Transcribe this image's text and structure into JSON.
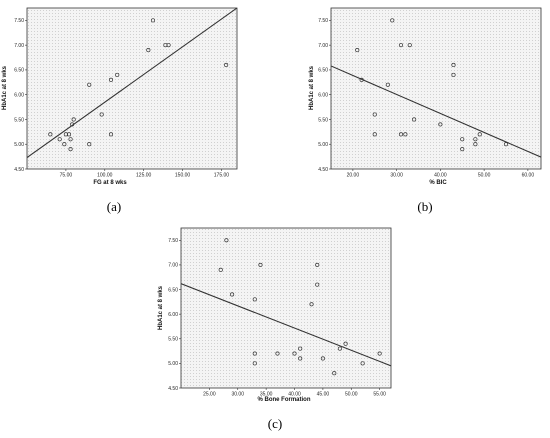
{
  "chart_data": [
    {
      "type": "scatter",
      "panel_label": "(a)",
      "xlabel": "FG at 8 wks",
      "ylabel": "HbA1c at 8 wks",
      "xlim": [
        50,
        185
      ],
      "ylim": [
        4.5,
        7.75
      ],
      "x_ticks": [
        "75.00",
        "100.00",
        "125.00",
        "150.00",
        "175.00"
      ],
      "y_ticks": [
        "4.50",
        "5.00",
        "5.50",
        "6.00",
        "6.50",
        "7.00",
        "7.50"
      ],
      "fit_line": [
        [
          50,
          4.73
        ],
        [
          185,
          7.75
        ]
      ],
      "points": [
        {
          "x": 65,
          "y": 5.2
        },
        {
          "x": 71,
          "y": 5.1
        },
        {
          "x": 74,
          "y": 5.0
        },
        {
          "x": 75,
          "y": 5.2
        },
        {
          "x": 77,
          "y": 5.2
        },
        {
          "x": 78,
          "y": 4.9
        },
        {
          "x": 78,
          "y": 5.1
        },
        {
          "x": 79,
          "y": 5.4
        },
        {
          "x": 80,
          "y": 5.5
        },
        {
          "x": 90,
          "y": 6.2
        },
        {
          "x": 90,
          "y": 5.0
        },
        {
          "x": 98,
          "y": 5.6
        },
        {
          "x": 104,
          "y": 5.2
        },
        {
          "x": 104,
          "y": 6.3
        },
        {
          "x": 108,
          "y": 6.4
        },
        {
          "x": 128,
          "y": 6.9
        },
        {
          "x": 131,
          "y": 7.5
        },
        {
          "x": 139,
          "y": 7.0
        },
        {
          "x": 141,
          "y": 7.0
        },
        {
          "x": 178,
          "y": 6.6
        }
      ]
    },
    {
      "type": "scatter",
      "panel_label": "(b)",
      "xlabel": "% BIC",
      "ylabel": "HbA1c at 8 wks",
      "xlim": [
        15,
        63
      ],
      "ylim": [
        4.5,
        7.75
      ],
      "x_ticks": [
        "20.00",
        "30.00",
        "40.00",
        "50.00",
        "60.00"
      ],
      "y_ticks": [
        "4.50",
        "5.00",
        "5.50",
        "6.00",
        "6.50",
        "7.00",
        "7.50"
      ],
      "fit_line": [
        [
          15,
          6.58
        ],
        [
          63,
          4.74
        ]
      ],
      "points": [
        {
          "x": 21,
          "y": 6.9
        },
        {
          "x": 22,
          "y": 6.3
        },
        {
          "x": 25,
          "y": 5.6
        },
        {
          "x": 25,
          "y": 5.2
        },
        {
          "x": 28,
          "y": 6.2
        },
        {
          "x": 29,
          "y": 7.5
        },
        {
          "x": 31,
          "y": 7.0
        },
        {
          "x": 31,
          "y": 5.2
        },
        {
          "x": 32,
          "y": 5.2
        },
        {
          "x": 33,
          "y": 7.0
        },
        {
          "x": 34,
          "y": 5.5
        },
        {
          "x": 40,
          "y": 5.4
        },
        {
          "x": 43,
          "y": 6.6
        },
        {
          "x": 43,
          "y": 6.4
        },
        {
          "x": 45,
          "y": 5.1
        },
        {
          "x": 45,
          "y": 4.9
        },
        {
          "x": 48,
          "y": 5.0
        },
        {
          "x": 48,
          "y": 5.1
        },
        {
          "x": 49,
          "y": 5.2
        },
        {
          "x": 55,
          "y": 5.0
        }
      ]
    },
    {
      "type": "scatter",
      "panel_label": "(c)",
      "xlabel": "% Bone Formation",
      "ylabel": "HbA1c at 8 wks",
      "xlim": [
        20,
        57
      ],
      "ylim": [
        4.5,
        7.75
      ],
      "x_ticks": [
        "25.00",
        "30.00",
        "35.00",
        "40.00",
        "45.00",
        "50.00",
        "55.00"
      ],
      "y_ticks": [
        "4.50",
        "5.00",
        "5.50",
        "6.00",
        "6.50",
        "7.00",
        "7.50"
      ],
      "fit_line": [
        [
          20,
          6.62
        ],
        [
          57,
          4.95
        ]
      ],
      "points": [
        {
          "x": 27,
          "y": 6.9
        },
        {
          "x": 28,
          "y": 7.5
        },
        {
          "x": 29,
          "y": 6.4
        },
        {
          "x": 33,
          "y": 6.3
        },
        {
          "x": 33,
          "y": 5.2
        },
        {
          "x": 33,
          "y": 5.0
        },
        {
          "x": 34,
          "y": 7.0
        },
        {
          "x": 37,
          "y": 5.2
        },
        {
          "x": 40,
          "y": 5.2
        },
        {
          "x": 41,
          "y": 5.1
        },
        {
          "x": 41,
          "y": 5.3
        },
        {
          "x": 43,
          "y": 6.2
        },
        {
          "x": 44,
          "y": 7.0
        },
        {
          "x": 44,
          "y": 6.6
        },
        {
          "x": 45,
          "y": 5.1
        },
        {
          "x": 47,
          "y": 4.8
        },
        {
          "x": 48,
          "y": 5.3
        },
        {
          "x": 49,
          "y": 5.4
        },
        {
          "x": 52,
          "y": 5.0
        },
        {
          "x": 55,
          "y": 5.2
        }
      ]
    }
  ]
}
